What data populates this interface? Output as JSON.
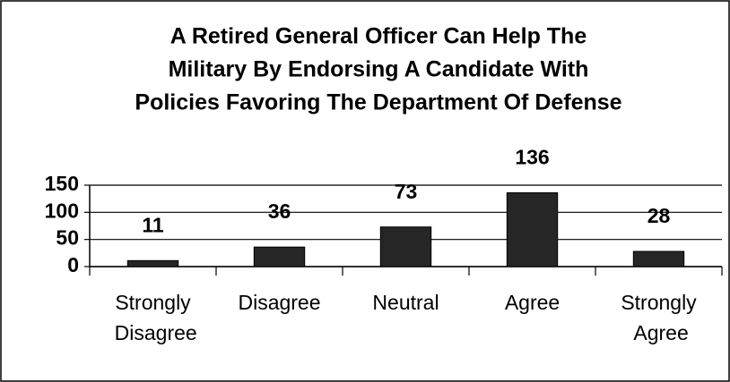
{
  "chart_data": {
    "type": "bar",
    "title": [
      "A Retired General Officer Can Help The",
      "Military By Endorsing A Candidate With",
      "Policies Favoring The Department Of Defense"
    ],
    "categories": [
      "Strongly Disagree",
      "Disagree",
      "Neutral",
      "Agree",
      "Strongly Agree"
    ],
    "values": [
      11,
      36,
      73,
      136,
      28
    ],
    "color": "#262626",
    "ylim": [
      0,
      150
    ],
    "yticks": [
      0,
      50,
      100,
      150
    ],
    "grid": true
  }
}
